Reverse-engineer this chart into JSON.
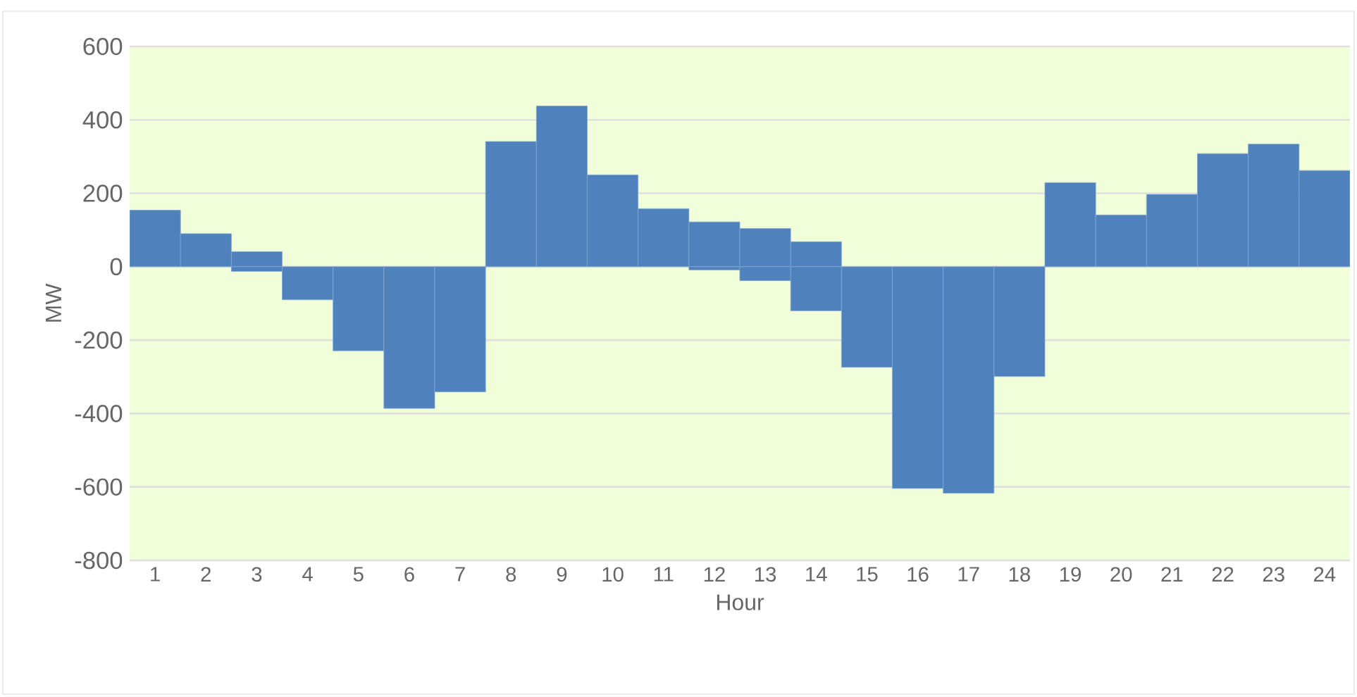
{
  "chart_data": {
    "type": "bar",
    "xlabel": "Hour",
    "ylabel": "MW",
    "categories": [
      "1",
      "2",
      "3",
      "4",
      "5",
      "6",
      "7",
      "8",
      "9",
      "10",
      "11",
      "12",
      "13",
      "14",
      "15",
      "16",
      "17",
      "18",
      "19",
      "20",
      "21",
      "22",
      "23",
      "24"
    ],
    "stacked": true,
    "series": [
      {
        "color": "#4f81bd",
        "values": [
          154,
          90,
          41,
          null,
          null,
          null,
          null,
          341,
          438,
          250,
          158,
          122,
          104,
          68,
          null,
          null,
          null,
          null,
          229,
          141,
          197,
          308,
          334,
          262
        ]
      },
      {
        "color": "#4f81bd",
        "values": [
          null,
          null,
          -13,
          -90,
          -229,
          -386,
          -341,
          null,
          null,
          null,
          null,
          -9,
          -38,
          -120,
          -274,
          -604,
          -617,
          -299,
          null,
          null,
          null,
          null,
          null,
          null
        ]
      }
    ],
    "ylim": [
      -800,
      600
    ],
    "yticks": [
      -800,
      -600,
      -400,
      -200,
      0,
      200,
      400,
      600
    ],
    "grid": "y"
  }
}
